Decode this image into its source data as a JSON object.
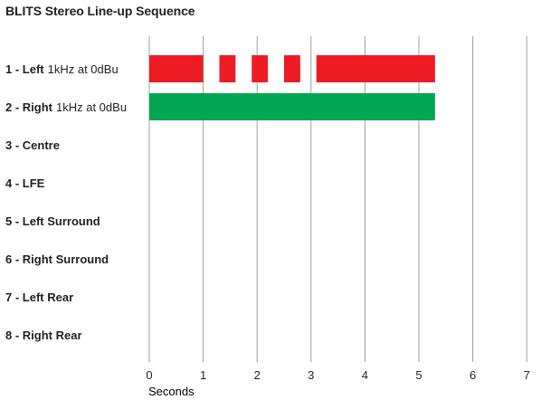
{
  "chart_data": {
    "type": "bar",
    "subtype": "timeline",
    "title": "BLITS Stereo Line-up Sequence",
    "xlabel": "Seconds",
    "xlim": [
      0,
      7
    ],
    "xticks": [
      "0",
      "1",
      "2",
      "3",
      "4",
      "5",
      "6",
      "7"
    ],
    "grid": "vertical",
    "rows": [
      {
        "name": "1 - Left",
        "note": "1kHz at 0dBu",
        "color": "#ed1c24",
        "segments": [
          [
            0,
            1.0
          ],
          [
            1.3,
            1.6
          ],
          [
            1.9,
            2.2
          ],
          [
            2.5,
            2.8
          ],
          [
            3.1,
            5.3
          ]
        ]
      },
      {
        "name": "2 - Right",
        "note": "1kHz at 0dBu",
        "color": "#00a651",
        "segments": [
          [
            0,
            5.3
          ]
        ]
      },
      {
        "name": "3 - Centre",
        "note": "",
        "color": "",
        "segments": []
      },
      {
        "name": "4 - LFE",
        "note": "",
        "color": "",
        "segments": []
      },
      {
        "name": "5 - Left Surround",
        "note": "",
        "color": "",
        "segments": []
      },
      {
        "name": "6 - Right Surround",
        "note": "",
        "color": "",
        "segments": []
      },
      {
        "name": "7 - Left Rear",
        "note": "",
        "color": "",
        "segments": []
      },
      {
        "name": "8 - Right Rear",
        "note": "",
        "color": "",
        "segments": []
      }
    ]
  }
}
